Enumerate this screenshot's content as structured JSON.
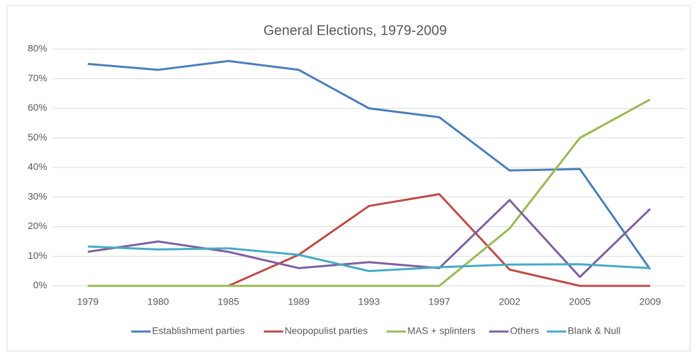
{
  "chart_data": {
    "type": "line",
    "title": "General Elections,  1979-2009",
    "categories": [
      "1979",
      "1980",
      "1985",
      "1989",
      "1993",
      "1997",
      "2002",
      "2005",
      "2009"
    ],
    "series": [
      {
        "name": "Establishment parties",
        "color": "#4a7ebb",
        "values": [
          75,
          73,
          76,
          73,
          60,
          57,
          39,
          39.5,
          5.6
        ]
      },
      {
        "name": "Neopopulist parties",
        "color": "#be4b48",
        "values": [
          0,
          0,
          0,
          10.5,
          27,
          31,
          5.5,
          0,
          0
        ]
      },
      {
        "name": "MAS + splinters",
        "color": "#98b954",
        "values": [
          0,
          0,
          0,
          0,
          0,
          0,
          19.4,
          50,
          63
        ]
      },
      {
        "name": "Others",
        "color": "#7d60a0",
        "values": [
          11.5,
          15,
          11.5,
          6,
          8,
          6,
          29,
          3,
          26
        ]
      },
      {
        "name": "Blank & Null",
        "color": "#46aac5",
        "values": [
          13.3,
          12.3,
          12.7,
          10.5,
          5,
          6.3,
          7.2,
          7.3,
          6
        ]
      }
    ],
    "ylim": [
      0,
      80
    ],
    "yticks": [
      {
        "value": 0,
        "label": "0%"
      },
      {
        "value": 10,
        "label": "10%"
      },
      {
        "value": 20,
        "label": "20%"
      },
      {
        "value": 30,
        "label": "30%"
      },
      {
        "value": 40,
        "label": "40%"
      },
      {
        "value": 50,
        "label": "50%"
      },
      {
        "value": 60,
        "label": "60%"
      },
      {
        "value": 70,
        "label": "70%"
      },
      {
        "value": 80,
        "label": "80%"
      }
    ],
    "grid": true,
    "legend": "bottom"
  }
}
